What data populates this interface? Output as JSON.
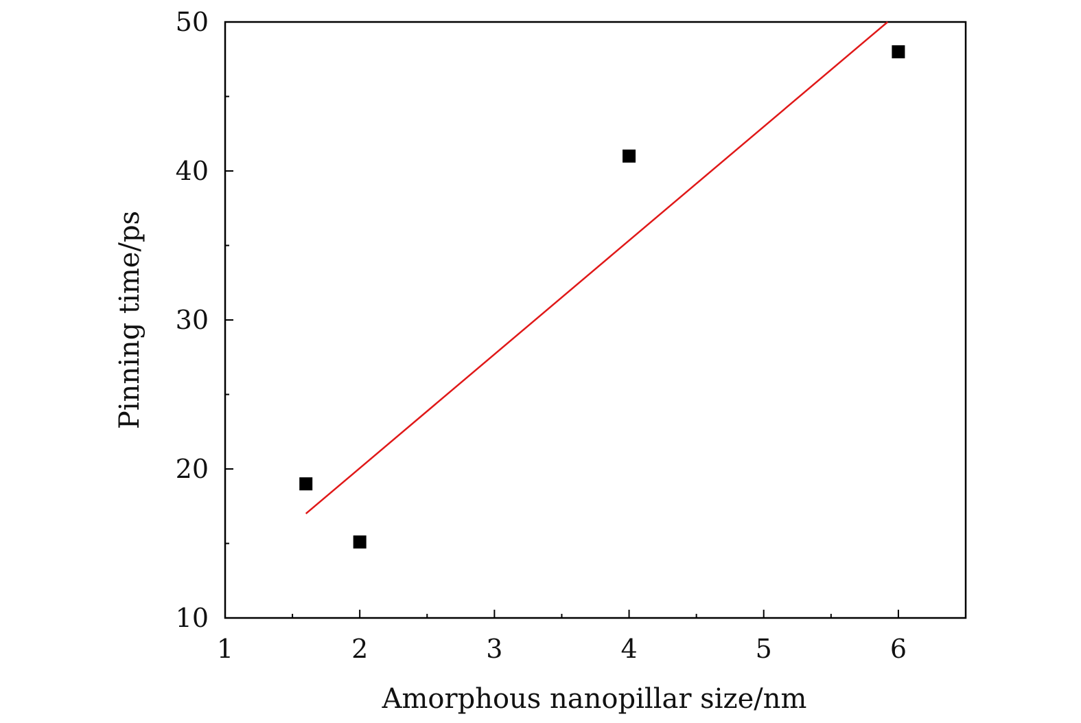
{
  "chart_data": {
    "type": "scatter",
    "xlabel": "Amorphous nanopillar size/nm",
    "ylabel": "Pinning time/ps",
    "xlim": [
      1,
      6.5
    ],
    "ylim": [
      10,
      50
    ],
    "x_ticks": [
      1,
      2,
      3,
      4,
      5,
      6
    ],
    "x_minor_ticks": [
      1.5,
      2.5,
      3.5,
      4.5,
      5.5
    ],
    "y_ticks": [
      10,
      20,
      30,
      40,
      50
    ],
    "y_minor_ticks": [
      15,
      25,
      35,
      45
    ],
    "grid": false,
    "legend": "none",
    "series": [
      {
        "type": "scatter",
        "marker": "square",
        "color": "#000000",
        "x": [
          1.6,
          2.0,
          4.0,
          6.0
        ],
        "y": [
          19,
          15.1,
          41,
          48
        ]
      },
      {
        "type": "line",
        "color": "#e01818",
        "x": [
          1.6,
          5.92
        ],
        "y": [
          17.0,
          50.0
        ]
      }
    ]
  }
}
